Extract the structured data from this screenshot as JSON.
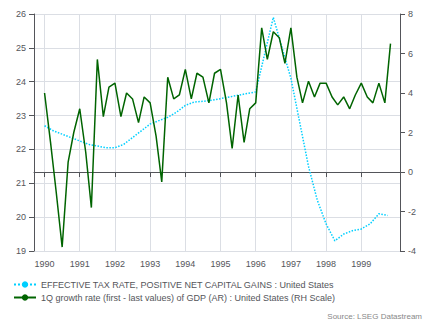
{
  "chart_data": {
    "type": "line",
    "annotations": [
      "Source: LSEG Datastream"
    ],
    "xlim": [
      1989.7,
      2000.1
    ],
    "xticks": [
      1990,
      1991,
      1992,
      1993,
      1994,
      1995,
      1996,
      1997,
      1998,
      1999
    ],
    "ylim": [
      19,
      26
    ],
    "yticks": [
      19,
      20,
      21,
      22,
      23,
      24,
      25,
      26
    ],
    "y2lim": [
      -4,
      8
    ],
    "y2ticks": [
      -4,
      -2,
      0,
      2,
      4,
      6,
      8
    ],
    "grid": true,
    "legend": "lower left",
    "series": [
      {
        "name": "EFFECTIVE TAX RATE, POSITIVE NET CAPITAL GAINS : United States",
        "color": "#00CFFF",
        "line_style": "dotted",
        "x": [
          1990.0,
          1990.25,
          1990.5,
          1990.75,
          1991.0,
          1991.25,
          1991.5,
          1991.75,
          1992.0,
          1992.25,
          1992.5,
          1992.75,
          1993.0,
          1993.25,
          1993.5,
          1993.75,
          1994.0,
          1994.25,
          1994.5,
          1994.75,
          1995.0,
          1995.25,
          1995.5,
          1995.75,
          1996.0,
          1996.25,
          1996.5,
          1997.0,
          1997.25,
          1997.5,
          1997.75,
          1998.0,
          1998.25,
          1998.5,
          1998.75,
          1999.0,
          1999.25,
          1999.5,
          1999.75
        ],
        "values": [
          22.7,
          22.55,
          22.45,
          22.35,
          22.25,
          22.15,
          22.1,
          22.05,
          22.05,
          22.15,
          22.35,
          22.55,
          22.75,
          22.85,
          22.95,
          23.1,
          23.3,
          23.4,
          23.42,
          23.45,
          23.5,
          23.55,
          23.6,
          23.65,
          23.7,
          24.8,
          25.9,
          24.1,
          22.8,
          21.5,
          20.5,
          19.8,
          19.3,
          19.5,
          19.6,
          19.65,
          19.8,
          20.1,
          20.05
        ]
      },
      {
        "name": "1Q growth rate (first - last values) of GDP (AR) : United States (RH Scale)",
        "color": "#006400",
        "line_style": "solid",
        "axis": "y2",
        "x": [
          1990.0,
          1990.17,
          1990.33,
          1990.5,
          1990.67,
          1990.83,
          1991.0,
          1991.17,
          1991.33,
          1991.5,
          1991.67,
          1991.83,
          1992.0,
          1992.17,
          1992.33,
          1992.5,
          1992.67,
          1992.83,
          1993.0,
          1993.17,
          1993.33,
          1993.5,
          1993.67,
          1993.83,
          1994.0,
          1994.17,
          1994.33,
          1994.5,
          1994.67,
          1994.83,
          1995.0,
          1995.17,
          1995.33,
          1995.5,
          1995.67,
          1995.83,
          1996.0,
          1996.17,
          1996.33,
          1996.5,
          1996.67,
          1996.83,
          1997.0,
          1997.17,
          1997.33,
          1997.5,
          1997.67,
          1997.83,
          1998.0,
          1998.17,
          1998.33,
          1998.5,
          1998.67,
          1998.83,
          1999.0,
          1999.17,
          1999.33,
          1999.5,
          1999.67,
          1999.83
        ],
        "values": [
          4.0,
          1.5,
          -1.0,
          -3.8,
          0.5,
          2.0,
          3.2,
          1.0,
          -1.8,
          5.7,
          2.8,
          4.3,
          4.5,
          2.8,
          4.0,
          3.7,
          2.5,
          3.8,
          3.5,
          1.8,
          -0.5,
          4.8,
          3.7,
          3.9,
          5.2,
          3.7,
          5.0,
          4.8,
          3.5,
          5.0,
          5.2,
          3.5,
          1.2,
          3.9,
          1.5,
          3.2,
          3.5,
          7.3,
          5.7,
          7.1,
          6.8,
          5.5,
          7.3,
          4.8,
          3.5,
          4.6,
          3.8,
          4.5,
          4.5,
          3.8,
          3.4,
          3.8,
          3.2,
          3.9,
          4.5,
          3.8,
          3.5,
          4.5,
          3.5,
          6.5
        ]
      }
    ]
  }
}
